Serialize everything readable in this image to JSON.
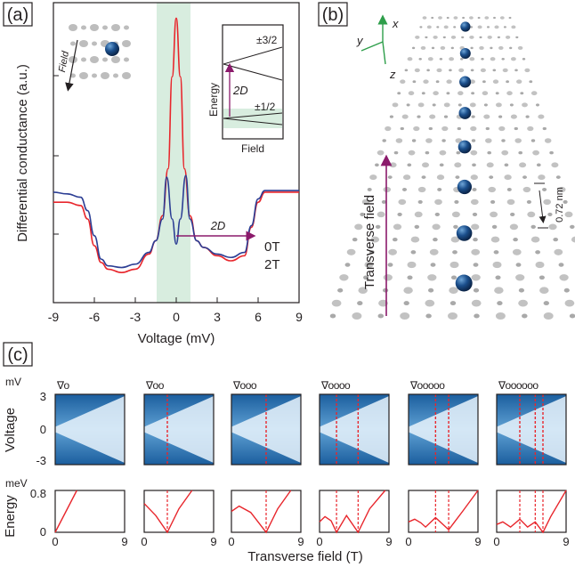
{
  "panels": {
    "a": {
      "label": "(a)"
    },
    "b": {
      "label": "(b)"
    },
    "c": {
      "label": "(c)"
    }
  },
  "panel_a": {
    "ylabel": "Differential conductance (a.u.)",
    "xlabel": "Voltage (mV)",
    "inset_field_label": "Field",
    "inset_energy": {
      "ylabel": "Energy",
      "xlabel": "Field",
      "level_high": "±3/2",
      "level_low": "±1/2",
      "gap_label": "2D"
    },
    "arrow_label": "2D",
    "legend": [
      {
        "label": "0T",
        "color": "#e8262c"
      },
      {
        "label": "2T",
        "color": "#2c3e94"
      }
    ],
    "shade_color": "#d8eddf"
  },
  "panel_b": {
    "axis_x": "x",
    "axis_y": "y",
    "axis_z": "z",
    "field_label": "Transverse field",
    "spacing_label": "0.72 nm",
    "accent": "#8b1a6b",
    "axes_color": "#2e9e4a"
  },
  "panel_c": {
    "top_units": "mV",
    "bottom_units": "meV",
    "top_ylabel": "Voltage",
    "bottom_ylabel": "Energy",
    "top_yticks": [
      "3",
      "0",
      "-3"
    ],
    "bottom_yticks": [
      "0.8",
      "0"
    ],
    "xticks": [
      "0",
      "9"
    ],
    "xlabel": "Transverse field (T)",
    "chain_markers": [
      "∇o",
      "∇oo",
      "∇ooo",
      "∇oooo",
      "∇ooooo",
      "∇oooooo"
    ]
  },
  "chart_data": [
    {
      "type": "line",
      "title": "",
      "xlabel": "Voltage (mV)",
      "ylabel": "Differential conductance (a.u.)",
      "xlim": [
        -9,
        9
      ],
      "xticks": [
        -9,
        -6,
        -3,
        0,
        3,
        6,
        9
      ],
      "series": [
        {
          "name": "0T",
          "color": "#e8262c",
          "x": [
            -9,
            -8,
            -7,
            -6.5,
            -6,
            -5.5,
            -5,
            -4,
            -3,
            -2,
            -1.5,
            -1,
            -0.6,
            -0.3,
            0,
            0.3,
            0.6,
            1,
            1.5,
            2,
            3,
            4,
            5,
            5.5,
            6,
            6.5,
            7,
            8,
            9
          ],
          "y": [
            0.6,
            0.6,
            0.58,
            0.5,
            0.34,
            0.24,
            0.2,
            0.18,
            0.2,
            0.29,
            0.37,
            0.52,
            0.8,
            1.35,
            1.7,
            1.35,
            0.8,
            0.52,
            0.37,
            0.33,
            0.28,
            0.25,
            0.28,
            0.45,
            0.6,
            0.66,
            0.66,
            0.66,
            0.66
          ]
        },
        {
          "name": "2T",
          "color": "#2c3e94",
          "x": [
            -9,
            -8,
            -7,
            -6.5,
            -6,
            -5.5,
            -5,
            -4,
            -3,
            -2,
            -1.5,
            -1,
            -0.7,
            -0.3,
            0,
            0.3,
            0.7,
            1,
            1.5,
            2,
            3,
            4,
            5,
            5.5,
            6,
            6.5,
            7,
            8,
            9
          ],
          "y": [
            0.66,
            0.65,
            0.63,
            0.55,
            0.4,
            0.26,
            0.22,
            0.21,
            0.23,
            0.3,
            0.37,
            0.5,
            0.75,
            0.5,
            0.35,
            0.5,
            0.76,
            0.5,
            0.37,
            0.33,
            0.29,
            0.27,
            0.3,
            0.46,
            0.62,
            0.67,
            0.67,
            0.67,
            0.67
          ]
        }
      ],
      "shaded_band_x": [
        -1.2,
        1.2
      ]
    },
    {
      "type": "line",
      "title": "",
      "xlabel": "Transverse field (T)",
      "ylabel": "Energy",
      "xlim": [
        0,
        9
      ],
      "ylim": [
        0,
        0.8
      ],
      "panels": [
        {
          "atoms": 1,
          "x": [
            0,
            2.8
          ],
          "y": [
            0,
            0.8
          ],
          "crossings": []
        },
        {
          "atoms": 2,
          "x": [
            0,
            1.5,
            3,
            4.5,
            6.2
          ],
          "y": [
            0.55,
            0.32,
            0,
            0.45,
            0.8
          ],
          "crossings": [
            3
          ]
        },
        {
          "atoms": 3,
          "x": [
            0,
            1,
            2.5,
            4.5,
            6,
            7.7
          ],
          "y": [
            0.4,
            0.5,
            0.38,
            0,
            0.45,
            0.8
          ],
          "crossings": [
            4.5
          ]
        },
        {
          "atoms": 4,
          "x": [
            0,
            0.7,
            1.5,
            2.2,
            3.5,
            5,
            6.5,
            8.5
          ],
          "y": [
            0.2,
            0.3,
            0.22,
            0,
            0.32,
            0,
            0.45,
            0.8
          ],
          "crossings": [
            2.2,
            5
          ]
        },
        {
          "atoms": 5,
          "x": [
            0,
            0.8,
            1.6,
            2.2,
            3.5,
            5.2,
            7,
            9
          ],
          "y": [
            0.2,
            0.25,
            0.18,
            0.1,
            0.28,
            0.05,
            0.4,
            0.8
          ],
          "crossings": [
            3.5,
            5.2
          ]
        },
        {
          "atoms": 6,
          "x": [
            0,
            0.8,
            1.8,
            3,
            4,
            5,
            6,
            7,
            9
          ],
          "y": [
            0.15,
            0.2,
            0.1,
            0.25,
            0.1,
            0.2,
            0,
            0.3,
            0.8
          ],
          "crossings": [
            3,
            5,
            6
          ]
        }
      ]
    }
  ]
}
